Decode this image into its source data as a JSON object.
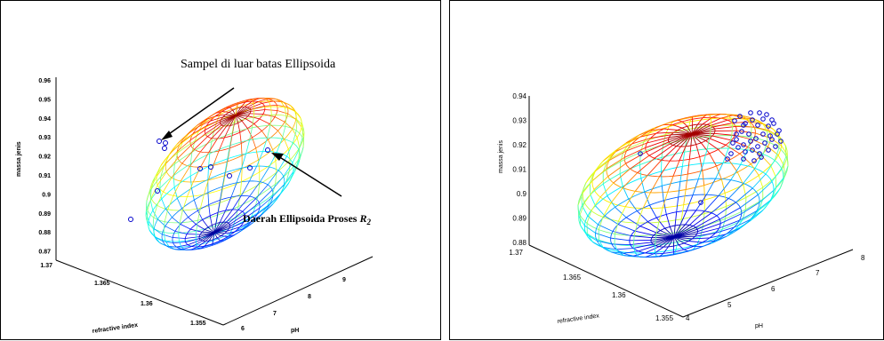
{
  "chart_data": [
    {
      "type": "ellipsoid3d",
      "title": "Sampel di luar batas Ellipsoida",
      "annotation": {
        "text_main": "Daerah Ellipsoida Proses ",
        "text_var": "R",
        "text_sub": "2"
      },
      "xlabel": "refractive index",
      "ylabel": "pH",
      "zlabel": "massa jenis",
      "z_ticks": [
        "0.96",
        "0.95",
        "0.94",
        "0.93",
        "0.92",
        "0.91",
        "0.9",
        "0.89",
        "0.88",
        "0.87"
      ],
      "x_ticks": [
        "1.37",
        "1.365",
        "1.36",
        "1.355"
      ],
      "y_ticks": [
        "6",
        "7",
        "8",
        "9"
      ],
      "grid": false,
      "bold_ticks": true
    },
    {
      "type": "ellipsoid3d",
      "xlabel": "refractive index",
      "ylabel": "pH",
      "zlabel": "massa jenis",
      "z_ticks": [
        "0.94",
        "0.93",
        "0.92",
        "0.91",
        "0.9",
        "0.89",
        "0.88"
      ],
      "x_ticks": [
        "1.37",
        "1.365",
        "1.36",
        "1.355"
      ],
      "y_ticks": [
        "4",
        "5",
        "6",
        "7",
        "8"
      ],
      "grid": false,
      "bold_ticks": false
    }
  ]
}
